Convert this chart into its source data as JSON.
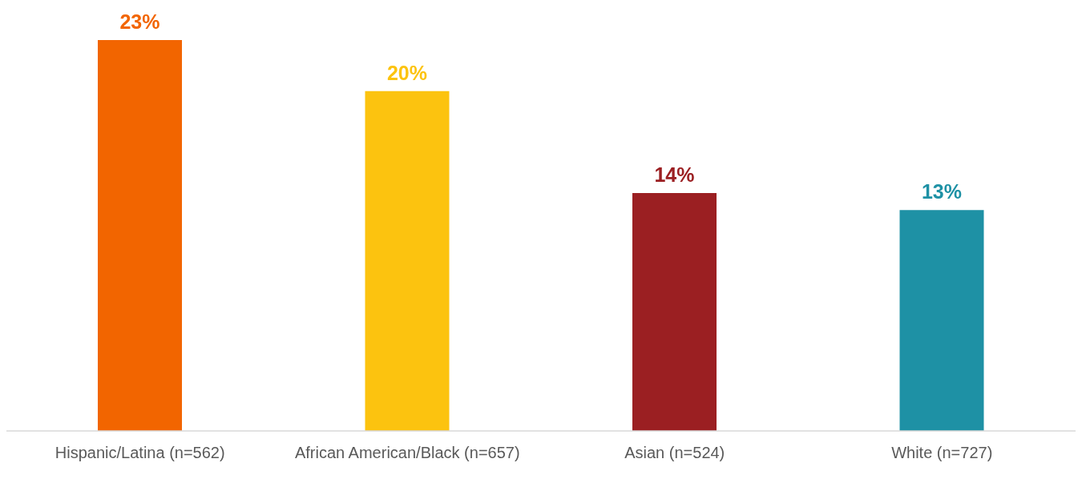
{
  "chart_data": {
    "type": "bar",
    "categories": [
      "Hispanic/Latina (n=562)",
      "African American/Black (n=657)",
      "Asian (n=524)",
      "White (n=727)"
    ],
    "values": [
      23,
      20,
      14,
      13
    ],
    "colors": [
      "#f26500",
      "#fcc30f",
      "#9b1f22",
      "#1e91a5"
    ],
    "value_labels": [
      "23%",
      "20%",
      "14%",
      "13%"
    ],
    "grid": false,
    "legend": false
  }
}
